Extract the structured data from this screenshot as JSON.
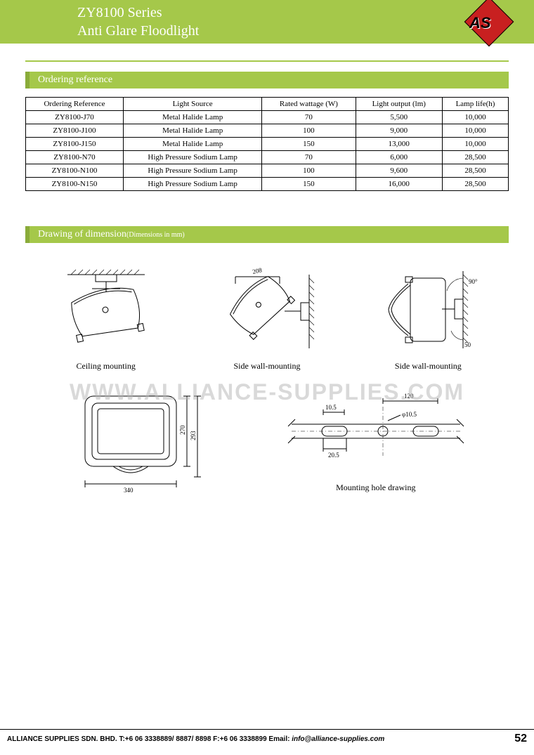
{
  "header": {
    "line1": "ZY8100 Series",
    "line2": "Anti Glare Floodlight",
    "logo_text": "AS",
    "logo_bg": "#c82020"
  },
  "sections": {
    "ordering": "Ordering reference",
    "drawing": "Drawing of dimension",
    "drawing_sub": "(Dimensions in mm)"
  },
  "table": {
    "columns": [
      "Ordering Reference",
      "Light Source",
      "Rated wattage (W)",
      "Light output (lm)",
      "Lamp life(h)"
    ],
    "rows": [
      [
        "ZY8100-J70",
        "Metal Halide Lamp",
        "70",
        "5,500",
        "10,000"
      ],
      [
        "ZY8100-J100",
        "Metal Halide Lamp",
        "100",
        "9,000",
        "10,000"
      ],
      [
        "ZY8100-J150",
        "Metal Halide Lamp",
        "150",
        "13,000",
        "10,000"
      ],
      [
        "ZY8100-N70",
        "High Pressure Sodium Lamp",
        "70",
        "6,000",
        "28,500"
      ],
      [
        "ZY8100-N100",
        "High Pressure Sodium Lamp",
        "100",
        "9,600",
        "28,500"
      ],
      [
        "ZY8100-N150",
        "High Pressure Sodium Lamp",
        "150",
        "16,000",
        "28,500"
      ]
    ]
  },
  "drawings": {
    "captions": {
      "ceiling": "Ceiling mounting",
      "side1": "Side wall-mounting",
      "side2": "Side wall-mounting",
      "mounting": "Mounting hole drawing"
    },
    "dims": {
      "angled": "208",
      "angle90": "90°",
      "angle50": "50",
      "front_h1": "270",
      "front_h2": "293",
      "front_w": "340",
      "mh_120": "120",
      "mh_10_5a": "10.5",
      "mh_10_5b": "φ10.5",
      "mh_20_5": "20.5"
    }
  },
  "watermark": "WWW.ALLIANCE-SUPPLIES.COM",
  "footer": {
    "company": "ALLIANCE SUPPLIES SDN. BHD. T:+6 06 3338889/ 8887/ 8898 F:+6 06 3338899 Email: ",
    "email": "info@alliance-supplies.com",
    "page": "52"
  },
  "colors": {
    "green": "#a5c84a",
    "darkgreen": "#8aab3a"
  }
}
